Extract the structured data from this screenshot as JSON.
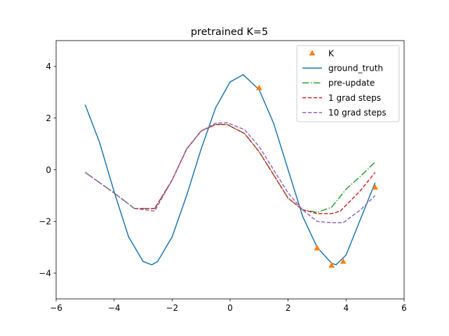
{
  "chart_data": {
    "type": "line",
    "title": "pretrained K=5",
    "xlabel": "",
    "ylabel": "",
    "xlim": [
      -6,
      6
    ],
    "ylim": [
      -5,
      5
    ],
    "xticks": [
      -6,
      -4,
      -2,
      0,
      2,
      4,
      6
    ],
    "yticks": [
      -4,
      -2,
      0,
      2,
      4
    ],
    "xtick_labels": [
      "−6",
      "−4",
      "−2",
      "0",
      "2",
      "4",
      "6"
    ],
    "ytick_labels": [
      "−4",
      "−2",
      "0",
      "2",
      "4"
    ],
    "grid": false,
    "legend_position": "top-right",
    "series": [
      {
        "name": "K",
        "style": "triangle-markers",
        "color": "#ff7f0e",
        "x": [
          1.0,
          3.0,
          3.5,
          3.9,
          5.0
        ],
        "y": [
          3.17,
          -3.03,
          -3.7,
          -3.55,
          -0.68
        ]
      },
      {
        "name": "ground_truth",
        "style": "solid",
        "color": "#1f77b4",
        "x": [
          -5.0,
          -4.5,
          -4.0,
          -3.5,
          -3.0,
          -2.7,
          -2.5,
          -2.0,
          -1.5,
          -1.0,
          -0.5,
          0.0,
          0.45,
          1.0,
          1.5,
          2.0,
          2.5,
          3.0,
          3.5,
          3.65,
          4.0,
          4.5,
          5.0
        ],
        "y": [
          2.52,
          1.05,
          -0.85,
          -2.6,
          -3.55,
          -3.68,
          -3.55,
          -2.6,
          -1.0,
          0.8,
          2.4,
          3.4,
          3.68,
          3.1,
          1.8,
          0.0,
          -1.8,
          -3.0,
          -3.62,
          -3.68,
          -3.3,
          -1.9,
          -0.5
        ]
      },
      {
        "name": "pre-update",
        "style": "dashdot",
        "color": "#2ca02c",
        "x": [
          -5.0,
          -4.0,
          -3.3,
          -2.6,
          -2.0,
          -1.5,
          -1.0,
          -0.5,
          -0.1,
          0.5,
          1.0,
          1.5,
          2.0,
          2.5,
          3.0,
          3.5,
          4.0,
          4.5,
          5.0
        ],
        "y": [
          -0.1,
          -0.9,
          -1.5,
          -1.5,
          -0.4,
          0.8,
          1.5,
          1.75,
          1.75,
          1.4,
          0.7,
          -0.2,
          -1.1,
          -1.55,
          -1.65,
          -1.45,
          -0.75,
          -0.25,
          0.3
        ]
      },
      {
        "name": "1 grad steps",
        "style": "dashed",
        "color": "#d62728",
        "x": [
          -5.0,
          -4.0,
          -3.3,
          -2.6,
          -2.0,
          -1.5,
          -1.0,
          -0.5,
          -0.1,
          0.5,
          1.0,
          1.5,
          2.0,
          2.5,
          3.0,
          3.5,
          3.8,
          4.5,
          5.0
        ],
        "y": [
          -0.1,
          -0.9,
          -1.5,
          -1.5,
          -0.4,
          0.8,
          1.5,
          1.75,
          1.75,
          1.4,
          0.7,
          -0.2,
          -1.1,
          -1.55,
          -1.7,
          -1.7,
          -1.6,
          -0.8,
          -0.1
        ]
      },
      {
        "name": "10 grad steps",
        "style": "dashed",
        "color": "#9467bd",
        "x": [
          -5.0,
          -4.0,
          -3.3,
          -2.6,
          -2.0,
          -1.5,
          -1.0,
          -0.5,
          -0.1,
          0.5,
          1.0,
          1.5,
          2.0,
          2.5,
          3.0,
          3.5,
          3.9,
          4.5,
          5.0
        ],
        "y": [
          -0.1,
          -0.9,
          -1.5,
          -1.6,
          -0.4,
          0.8,
          1.5,
          1.8,
          1.82,
          1.55,
          0.9,
          0.0,
          -0.9,
          -1.55,
          -2.0,
          -2.05,
          -2.05,
          -1.55,
          -1.0
        ]
      }
    ]
  }
}
